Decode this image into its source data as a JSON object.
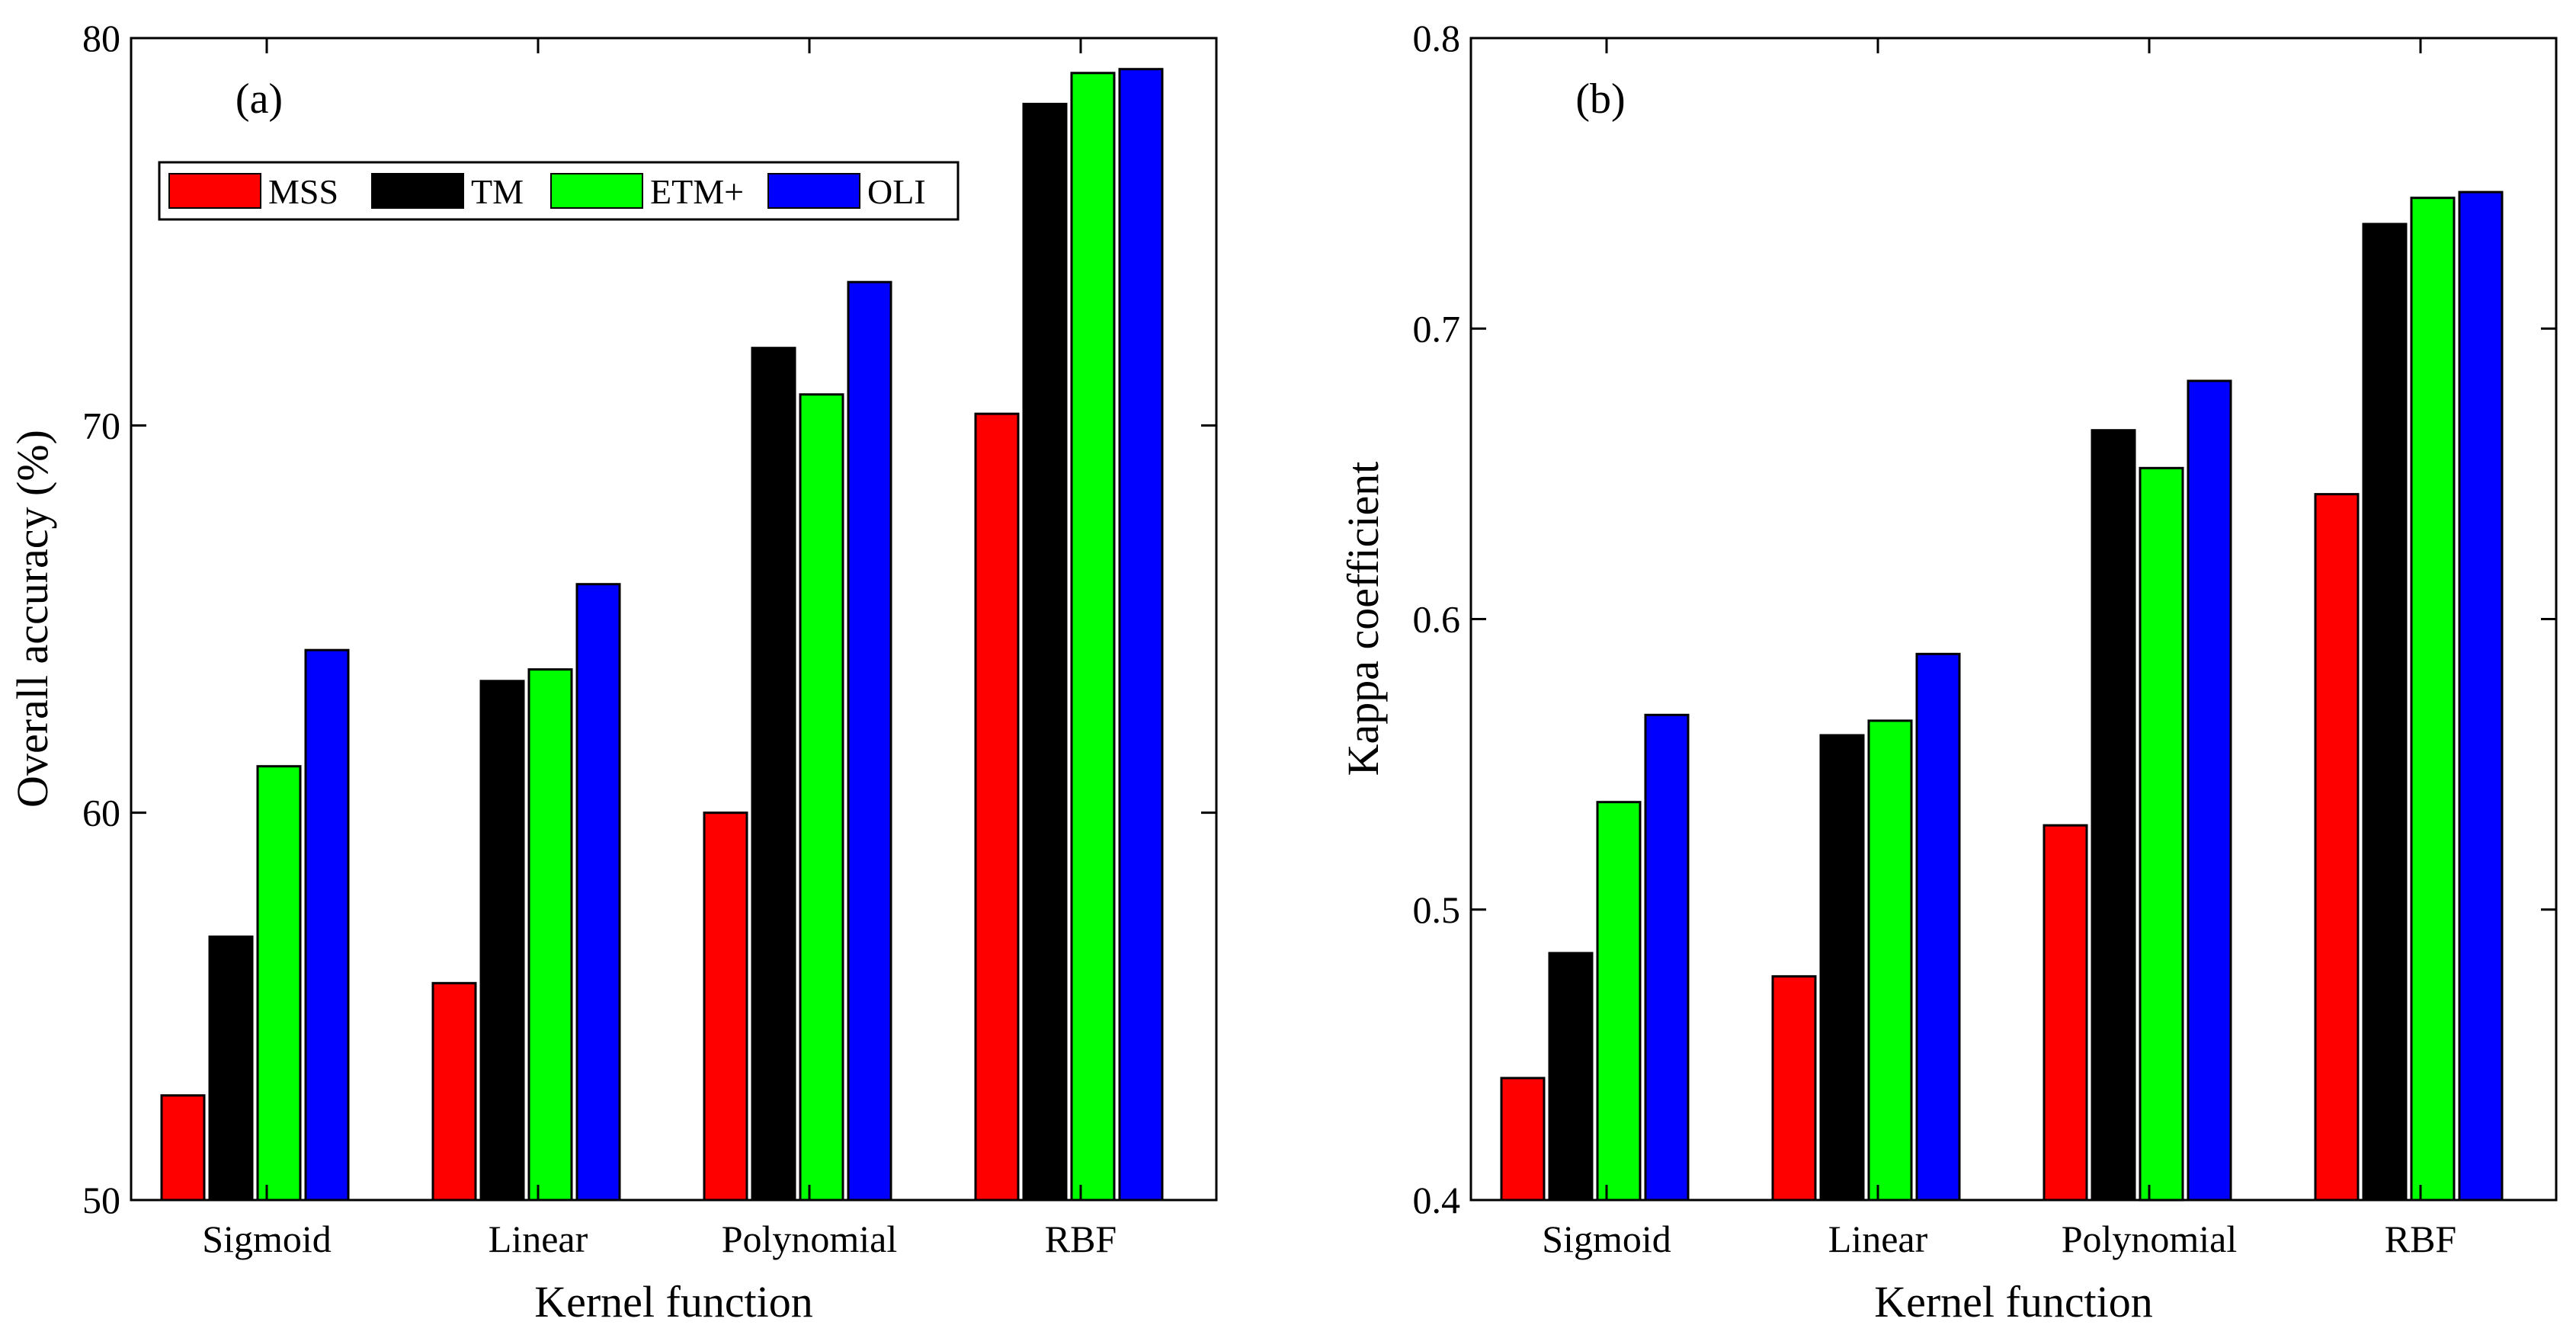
{
  "chart_data": [
    {
      "type": "bar",
      "panel_label": "(a)",
      "title": "",
      "xlabel": "Kernel function",
      "ylabel": "Overall accuracy (%)",
      "categories": [
        "Sigmoid",
        "Linear",
        "Polynomial",
        "RBF"
      ],
      "ylim": [
        50,
        80
      ],
      "yticks": [
        50,
        60,
        70,
        80
      ],
      "ytick_labels": [
        "50",
        "60",
        "70",
        "80"
      ],
      "grid": false,
      "legend": {
        "position": "top-left",
        "orientation": "horizontal"
      },
      "series": [
        {
          "name": "MSS",
          "color": "#ff0000",
          "values": [
            52.7,
            55.6,
            60.0,
            70.3
          ]
        },
        {
          "name": "TM",
          "color": "#000000",
          "values": [
            56.8,
            63.4,
            72.0,
            78.3
          ]
        },
        {
          "name": "ETM+",
          "color": "#00ff00",
          "values": [
            61.2,
            63.7,
            70.8,
            79.1
          ]
        },
        {
          "name": "OLI",
          "color": "#0000ff",
          "values": [
            64.2,
            65.9,
            73.7,
            79.2
          ]
        }
      ]
    },
    {
      "type": "bar",
      "panel_label": "(b)",
      "title": "",
      "xlabel": "Kernel function",
      "ylabel": "Kappa coefficient",
      "categories": [
        "Sigmoid",
        "Linear",
        "Polynomial",
        "RBF"
      ],
      "ylim": [
        0.4,
        0.8
      ],
      "yticks": [
        0.4,
        0.5,
        0.6,
        0.7,
        0.8
      ],
      "ytick_labels": [
        "0.4",
        "0.5",
        "0.6",
        "0.7",
        "0.8"
      ],
      "grid": false,
      "series": [
        {
          "name": "MSS",
          "color": "#ff0000",
          "values": [
            0.442,
            0.477,
            0.529,
            0.643
          ]
        },
        {
          "name": "TM",
          "color": "#000000",
          "values": [
            0.485,
            0.56,
            0.665,
            0.736
          ]
        },
        {
          "name": "ETM+",
          "color": "#00ff00",
          "values": [
            0.537,
            0.565,
            0.652,
            0.745
          ]
        },
        {
          "name": "OLI",
          "color": "#0000ff",
          "values": [
            0.567,
            0.588,
            0.682,
            0.747
          ]
        }
      ]
    }
  ]
}
